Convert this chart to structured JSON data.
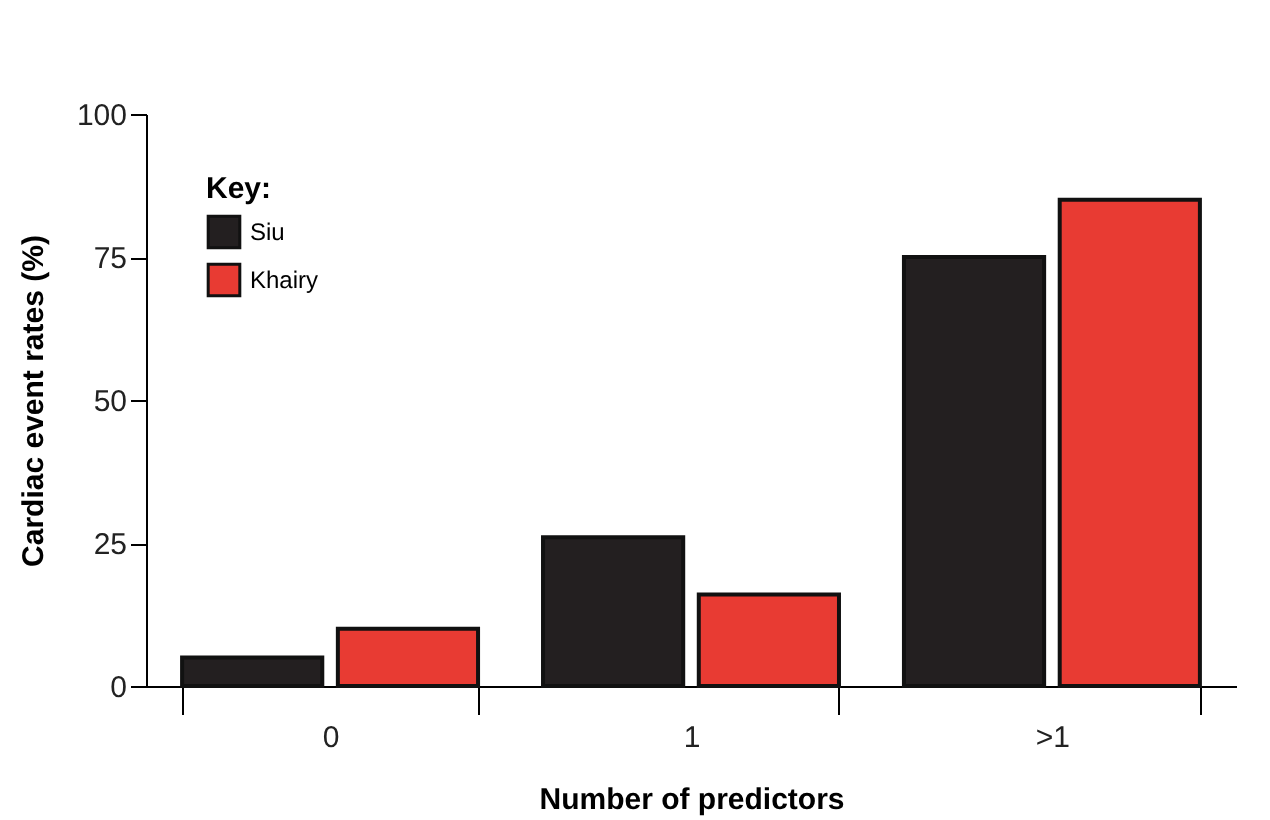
{
  "chart_data": {
    "type": "bar",
    "xlabel": "Number of predictors",
    "ylabel": "Cardiac event rates (%)",
    "legend_title": "Key:",
    "legend": "top left",
    "categories": [
      "0",
      "1",
      ">1"
    ],
    "series": [
      {
        "name": "Siu",
        "color": "#231f20",
        "values": [
          5,
          26,
          75
        ]
      },
      {
        "name": "Khairy",
        "color": "#e83b33",
        "values": [
          10,
          16,
          85
        ]
      }
    ],
    "ylim": [
      0,
      100
    ],
    "yticks": [
      0,
      25,
      50,
      75,
      100
    ],
    "grid": false
  }
}
